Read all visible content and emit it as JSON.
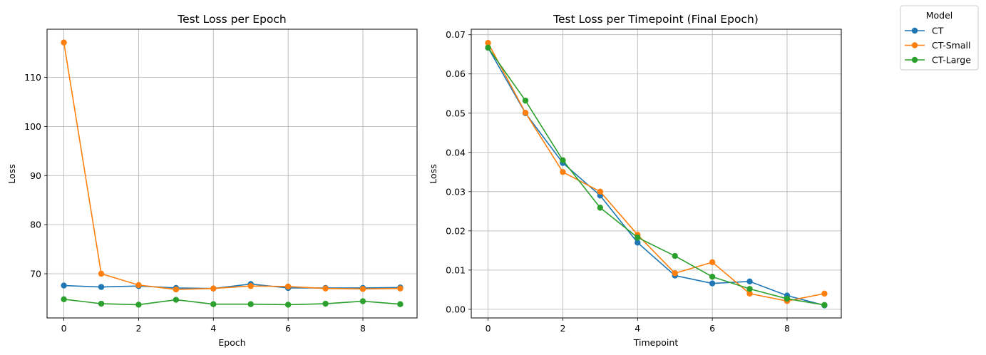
{
  "legend": {
    "title": "Model",
    "entries": [
      {
        "name": "CT",
        "color": "#1f77b4"
      },
      {
        "name": "CT-Small",
        "color": "#ff7f0e"
      },
      {
        "name": "CT-Large",
        "color": "#2ca02c"
      }
    ],
    "placement": "upper-right-outside"
  },
  "chart_data": [
    {
      "type": "line",
      "title": "Test Loss per Epoch",
      "xlabel": "Epoch",
      "ylabel": "Loss",
      "x": [
        0,
        1,
        2,
        3,
        4,
        5,
        6,
        7,
        8,
        9
      ],
      "xlim": [
        -0.45,
        9.45
      ],
      "ylim": [
        61.0,
        119.8
      ],
      "xticks": [
        0,
        2,
        4,
        6,
        8
      ],
      "yticks": [
        70,
        80,
        90,
        100,
        110
      ],
      "grid": true,
      "markers": "circle",
      "series": [
        {
          "name": "CT",
          "color": "#1f77b4",
          "values": [
            67.6,
            67.3,
            67.5,
            67.1,
            67.0,
            67.9,
            67.1,
            67.1,
            67.1,
            67.2
          ]
        },
        {
          "name": "CT-Small",
          "color": "#ff7f0e",
          "values": [
            117.1,
            70.0,
            67.7,
            66.8,
            67.0,
            67.5,
            67.4,
            67.0,
            66.9,
            67.0
          ]
        },
        {
          "name": "CT-Large",
          "color": "#2ca02c",
          "values": [
            64.8,
            63.9,
            63.7,
            64.7,
            63.8,
            63.8,
            63.7,
            63.9,
            64.4,
            63.8
          ]
        }
      ]
    },
    {
      "type": "line",
      "title": "Test Loss per Timepoint (Final Epoch)",
      "xlabel": "Timepoint",
      "ylabel": "Loss",
      "x": [
        0,
        1,
        2,
        3,
        4,
        5,
        6,
        7,
        8,
        9
      ],
      "xlim": [
        -0.45,
        9.45
      ],
      "ylim": [
        -0.0022,
        0.0714
      ],
      "xticks": [
        0,
        2,
        4,
        6,
        8
      ],
      "yticks": [
        0.0,
        0.01,
        0.02,
        0.03,
        0.04,
        0.05,
        0.06,
        0.07
      ],
      "ytick_labels": [
        "0.00",
        "0.01",
        "0.02",
        "0.03",
        "0.04",
        "0.05",
        "0.06",
        "0.07"
      ],
      "grid": true,
      "markers": "circle",
      "series": [
        {
          "name": "CT",
          "color": "#1f77b4",
          "values": [
            0.0667,
            0.05,
            0.0373,
            0.029,
            0.017,
            0.0086,
            0.0066,
            0.0071,
            0.0035,
            0.001
          ]
        },
        {
          "name": "CT-Small",
          "color": "#ff7f0e",
          "values": [
            0.0679,
            0.0501,
            0.035,
            0.03,
            0.019,
            0.0092,
            0.012,
            0.004,
            0.0021,
            0.004
          ]
        },
        {
          "name": "CT-Large",
          "color": "#2ca02c",
          "values": [
            0.0667,
            0.0532,
            0.038,
            0.0259,
            0.0183,
            0.0136,
            0.0083,
            0.0052,
            0.0027,
            0.0011
          ]
        }
      ]
    }
  ]
}
